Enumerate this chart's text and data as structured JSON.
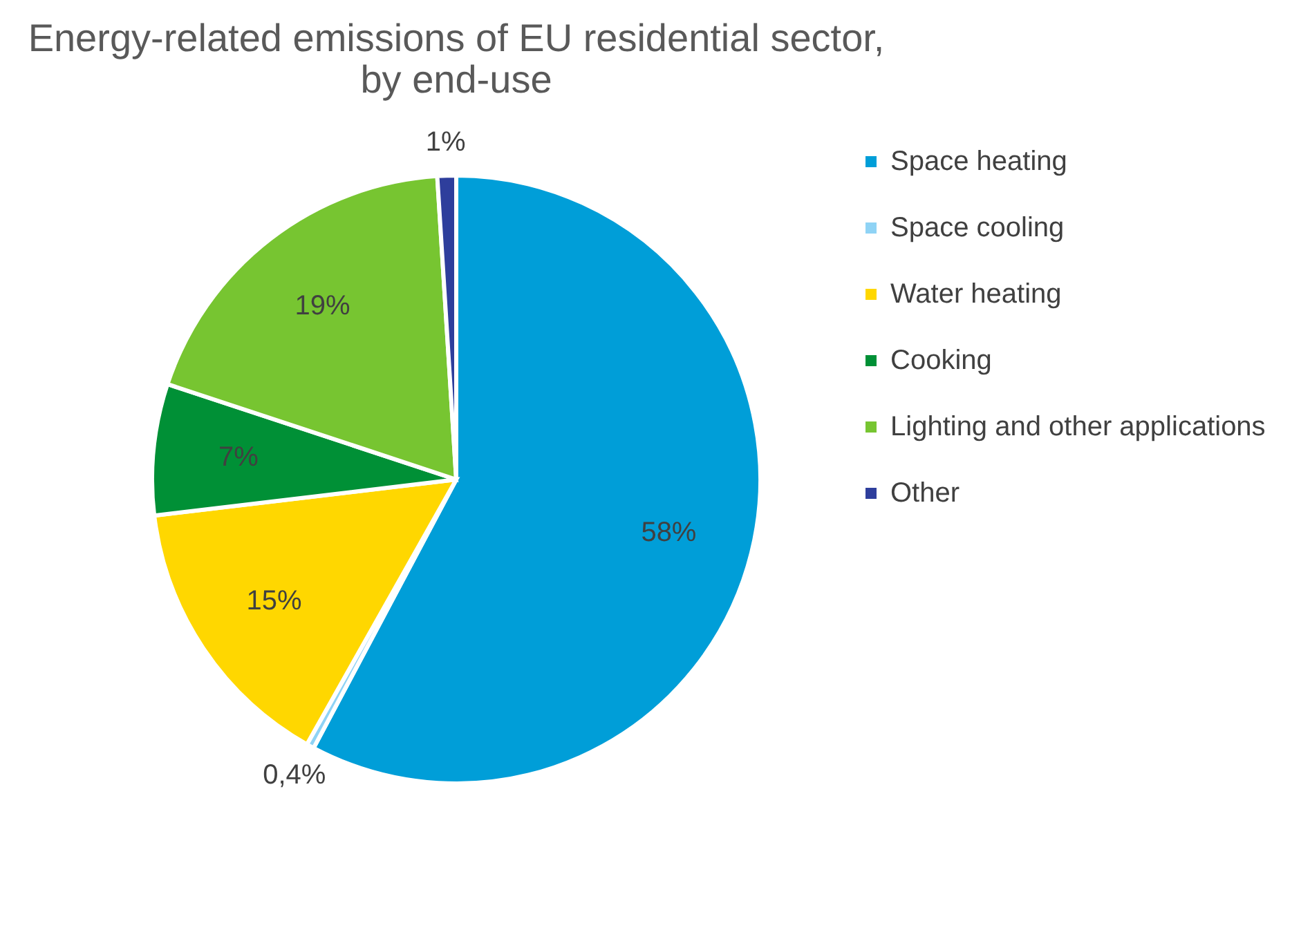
{
  "chart_data": {
    "type": "pie",
    "title": [
      "Energy-related emissions of EU residential sector,",
      "by end-use"
    ],
    "categories": [
      "Space heating",
      "Space cooling",
      "Water heating",
      "Cooking",
      "Lighting and other applications",
      "Other"
    ],
    "values": [
      58,
      0.4,
      15,
      7,
      19,
      1
    ],
    "value_labels": [
      "58%",
      "0,4%",
      "15%",
      "7%",
      "19%",
      "1%"
    ],
    "colors": [
      "#009ed8",
      "#8fd3f5",
      "#ffd700",
      "#009036",
      "#77c531",
      "#2e3e9c"
    ],
    "legend": "right"
  }
}
